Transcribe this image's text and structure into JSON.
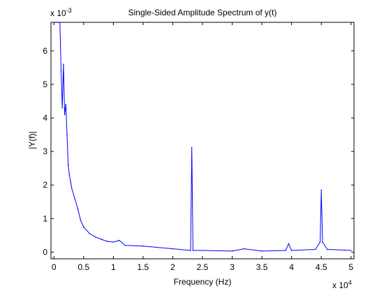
{
  "chart_data": {
    "type": "line",
    "title": "Single-Sided Amplitude Spectrum of y(t)",
    "xlabel": "Frequency (Hz)",
    "ylabel": "|Y(f)|",
    "xlim": [
      -0.05,
      5.05
    ],
    "ylim": [
      -0.2,
      6.85
    ],
    "x_multiplier_label": "x 10",
    "x_multiplier_exp": "4",
    "y_multiplier_label": "x 10",
    "y_multiplier_exp": "-3",
    "x_ticks": [
      0,
      0.5,
      1,
      1.5,
      2,
      2.5,
      3,
      3.5,
      4,
      4.5,
      5
    ],
    "x_tick_labels": [
      "0",
      "0.5",
      "1",
      "1.5",
      "2",
      "2.5",
      "3",
      "3.5",
      "4",
      "4.5",
      "5"
    ],
    "y_ticks": [
      0,
      1,
      2,
      3,
      4,
      5,
      6
    ],
    "y_tick_labels": [
      "0",
      "1",
      "2",
      "3",
      "4",
      "5",
      "6"
    ],
    "grid": false,
    "legend": "none",
    "line_color": "#0000ff",
    "series": [
      {
        "x": [
          0.0,
          0.02,
          0.04,
          0.06,
          0.08,
          0.1,
          0.12,
          0.14,
          0.16,
          0.18,
          0.2,
          0.22,
          0.24,
          0.26,
          0.28,
          0.3,
          0.35,
          0.4,
          0.45,
          0.5,
          0.6,
          0.7,
          0.8,
          0.9,
          1.0,
          1.1,
          1.2,
          1.5,
          2.0,
          2.3,
          2.32,
          2.34,
          2.5,
          3.0,
          3.2,
          3.5,
          3.9,
          3.95,
          4.0,
          4.4,
          4.48,
          4.5,
          4.52,
          4.6,
          4.9,
          5.0
        ],
        "values": [
          6.85,
          6.85,
          6.85,
          6.85,
          6.85,
          6.85,
          5.4,
          4.3,
          5.6,
          4.1,
          4.4,
          3.5,
          2.6,
          2.3,
          2.1,
          1.9,
          1.6,
          1.3,
          0.95,
          0.75,
          0.55,
          0.45,
          0.38,
          0.32,
          0.3,
          0.35,
          0.2,
          0.18,
          0.1,
          0.05,
          3.12,
          0.05,
          0.05,
          0.03,
          0.1,
          0.03,
          0.05,
          0.25,
          0.05,
          0.08,
          0.3,
          1.85,
          0.3,
          0.08,
          0.06,
          0.05
        ]
      }
    ]
  }
}
